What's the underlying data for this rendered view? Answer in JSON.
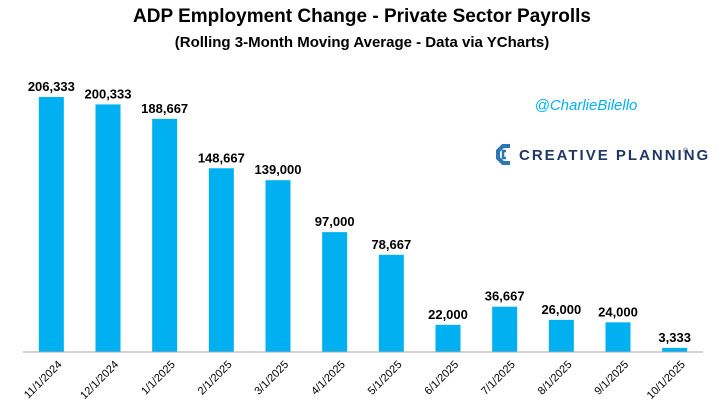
{
  "colors": {
    "bar": "#00B0F0",
    "handle": "#00B0F0",
    "brand_text": "#1F3864",
    "brand_mark": "#2E75B6",
    "axis": "#A6A6A6"
  },
  "branding": {
    "handle": "@CharlieBilello",
    "company": "CREATIVE PLANNING",
    "logo_icon": "creative-planning-logo-icon",
    "trademark": "®"
  },
  "chart_data": {
    "type": "bar",
    "title": "ADP Employment Change - Private Sector Payrolls",
    "subtitle": "(Rolling 3-Month Moving Average - Data via YCharts)",
    "xlabel": "",
    "ylabel": "",
    "ylim": [
      0,
      206333
    ],
    "grid": false,
    "legend": "none",
    "categories": [
      "11/1/2024",
      "12/1/2024",
      "1/1/2025",
      "2/1/2025",
      "3/1/2025",
      "4/1/2025",
      "5/1/2025",
      "6/1/2025",
      "7/1/2025",
      "8/1/2025",
      "9/1/2025",
      "10/1/2025"
    ],
    "values": [
      206333,
      200333,
      188667,
      148667,
      139000,
      97000,
      78667,
      22000,
      36667,
      26000,
      24000,
      3333
    ],
    "data_labels": [
      "206,333",
      "200,333",
      "188,667",
      "148,667",
      "139,000",
      "97,000",
      "78,667",
      "22,000",
      "36,667",
      "26,000",
      "24,000",
      "3,333"
    ]
  }
}
